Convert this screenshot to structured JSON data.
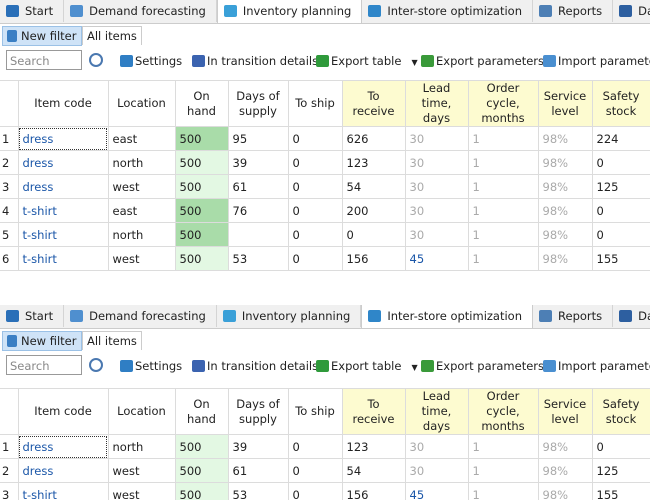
{
  "panels": [
    {
      "tabs": [
        "Start",
        "Demand forecasting",
        "Inventory planning",
        "Inter-store optimization",
        "Reports",
        "Dashbo"
      ],
      "active_tab": 2,
      "filter": {
        "new_filter": "New filter",
        "all_items": "All items"
      },
      "search_placeholder": "Search",
      "toolbar": [
        "Settings",
        "In transition details",
        "Export table",
        "Export parameters",
        "Import parameters"
      ],
      "columns": [
        "Item code",
        "Location",
        "On hand",
        "Days of supply",
        "To ship",
        "To receive",
        "Lead time, days",
        "Order cycle, months",
        "Service level",
        "Safety stock"
      ],
      "rows": [
        [
          1,
          "dress",
          "east",
          500,
          95,
          0,
          626,
          30,
          1,
          "98%",
          224
        ],
        [
          2,
          "dress",
          "north",
          500,
          39,
          0,
          123,
          30,
          1,
          "98%",
          0
        ],
        [
          3,
          "dress",
          "west",
          500,
          61,
          0,
          54,
          30,
          1,
          "98%",
          125
        ],
        [
          4,
          "t-shirt",
          "east",
          500,
          76,
          0,
          200,
          30,
          1,
          "98%",
          0
        ],
        [
          5,
          "t-shirt",
          "north",
          500,
          null,
          0,
          0,
          30,
          1,
          "98%",
          0
        ],
        [
          6,
          "t-shirt",
          "west",
          500,
          53,
          0,
          156,
          45,
          1,
          "98%",
          155
        ]
      ],
      "on_hand_dark_rows": [
        0,
        3,
        4
      ]
    },
    {
      "tabs": [
        "Start",
        "Demand forecasting",
        "Inventory planning",
        "Inter-store optimization",
        "Reports",
        "Dashbo"
      ],
      "active_tab": 3,
      "filter": {
        "new_filter": "New filter",
        "all_items": "All items"
      },
      "search_placeholder": "Search",
      "toolbar": [
        "Settings",
        "In transition details",
        "Export table",
        "Export parameters",
        "Import parameter"
      ],
      "columns": [
        "Item code",
        "Location",
        "On hand",
        "Days of supply",
        "To ship",
        "To receive",
        "Lead time, days",
        "Order cycle, months",
        "Service level",
        "Safety stock"
      ],
      "rows": [
        [
          1,
          "dress",
          "north",
          500,
          39,
          0,
          123,
          30,
          1,
          "98%",
          0
        ],
        [
          2,
          "dress",
          "west",
          500,
          61,
          0,
          54,
          30,
          1,
          "98%",
          125
        ],
        [
          3,
          "t-shirt",
          "west",
          500,
          53,
          0,
          156,
          45,
          1,
          "98%",
          155
        ]
      ],
      "on_hand_dark_rows": []
    }
  ]
}
